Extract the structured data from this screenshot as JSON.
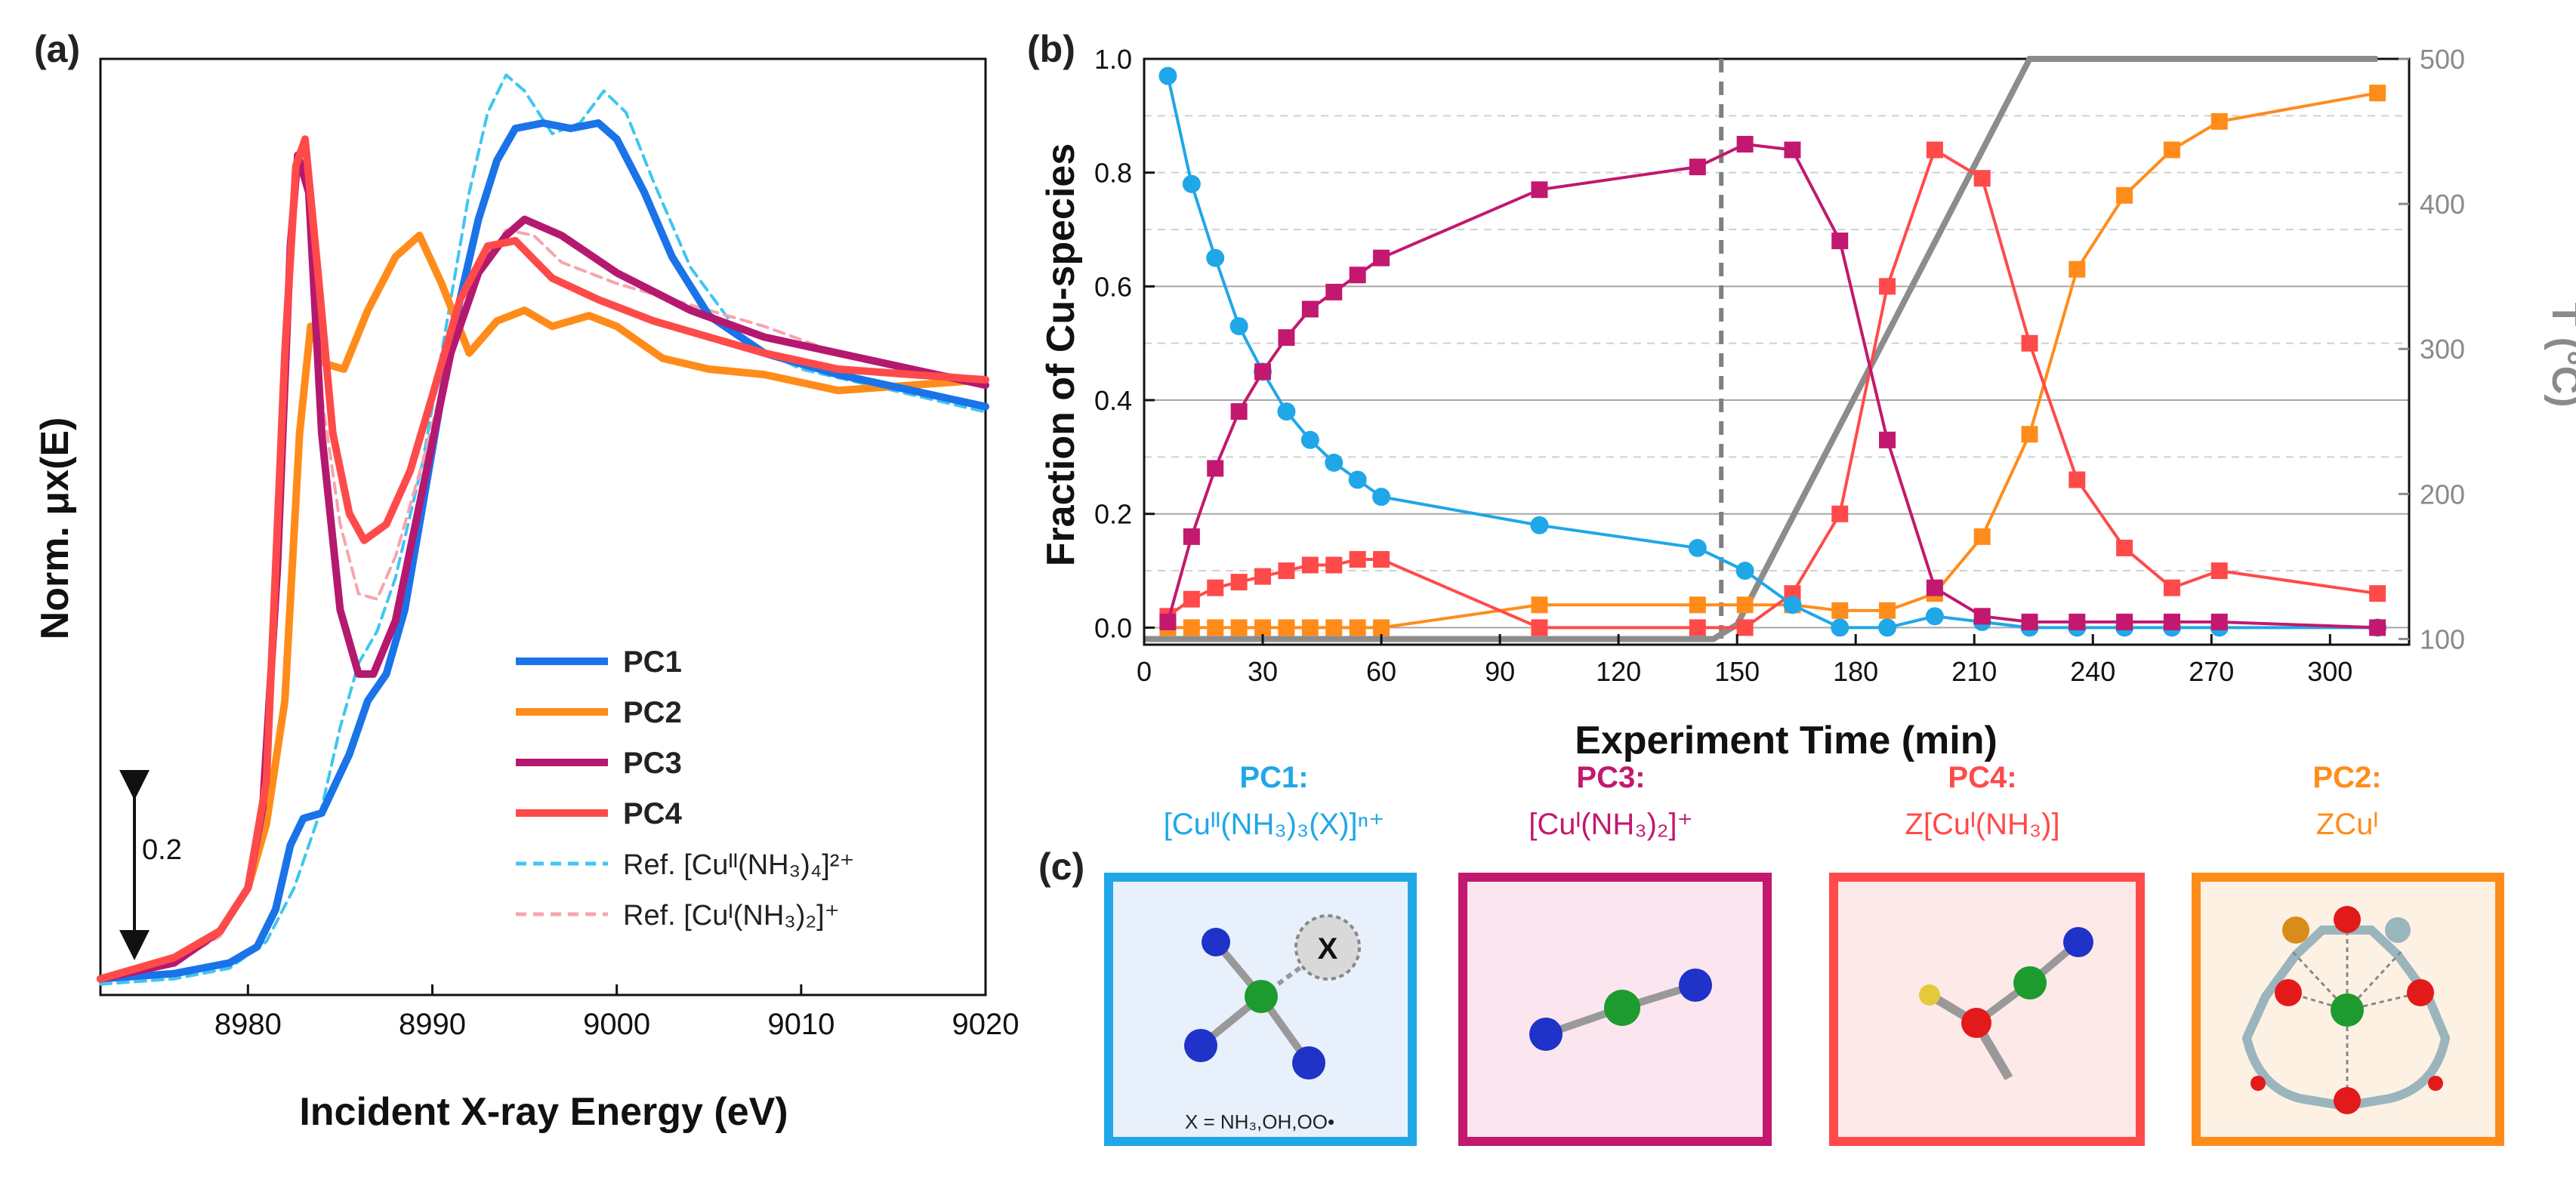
{
  "panels": {
    "a": "(a)",
    "b": "(b)",
    "c": "(c)"
  },
  "chart_data": [
    {
      "id": "xanes",
      "type": "line",
      "xlabel": "Incident X-ray Energy (eV)",
      "ylabel": "Norm. μx(E)",
      "xlim": [
        8972,
        9020
      ],
      "ylim": [
        0,
        1.75
      ],
      "xticks": [
        8980,
        8990,
        9000,
        9010,
        9020
      ],
      "scale_bar": {
        "label": "0.2",
        "value": 0.2
      },
      "legend": [
        "PC1",
        "PC2",
        "PC3",
        "PC4",
        "Ref. [Cuᴵᴵ(NH₃)₄]²⁺",
        "Ref. [Cuᴵ(NH₃)₂]⁺"
      ],
      "series": [
        {
          "name": "PC1",
          "color": "#1a73e8",
          "style": "solid",
          "x": [
            8972,
            8976,
            8979,
            8980.5,
            8981.5,
            8982.3,
            8983,
            8984,
            8985.5,
            8986.5,
            8987.5,
            8988.5,
            8989.5,
            8990.5,
            8991.5,
            8992.5,
            8993.5,
            8994.5,
            8996,
            8997.5,
            8999,
            9000,
            9001.5,
            9003,
            9005,
            9008,
            9012,
            9016,
            9020
          ],
          "y": [
            0.03,
            0.04,
            0.06,
            0.09,
            0.16,
            0.28,
            0.33,
            0.34,
            0.45,
            0.55,
            0.6,
            0.72,
            0.92,
            1.12,
            1.3,
            1.45,
            1.56,
            1.62,
            1.63,
            1.62,
            1.63,
            1.6,
            1.5,
            1.38,
            1.27,
            1.2,
            1.16,
            1.13,
            1.1
          ]
        },
        {
          "name": "PC2",
          "color": "#ff8c1a",
          "style": "solid",
          "x": [
            8972,
            8976,
            8978.5,
            8980,
            8981,
            8982,
            8982.8,
            8983.4,
            8984.2,
            8985.2,
            8986.5,
            8988,
            8989.3,
            8990.5,
            8992,
            8993.5,
            8995,
            8996.5,
            8998.5,
            9000,
            9002.5,
            9005,
            9008,
            9012,
            9016,
            9020
          ],
          "y": [
            0.03,
            0.07,
            0.12,
            0.2,
            0.32,
            0.55,
            1.05,
            1.25,
            1.18,
            1.17,
            1.28,
            1.38,
            1.42,
            1.33,
            1.2,
            1.26,
            1.28,
            1.25,
            1.27,
            1.25,
            1.19,
            1.17,
            1.16,
            1.13,
            1.14,
            1.15
          ]
        },
        {
          "name": "PC3",
          "color": "#b5186f",
          "style": "solid",
          "x": [
            8972,
            8976,
            8978.5,
            8980,
            8980.8,
            8981.6,
            8982.3,
            8982.7,
            8983.3,
            8984,
            8985,
            8986,
            8986.8,
            8988,
            8989.5,
            8991,
            8992.5,
            8994,
            8995,
            8997,
            9000,
            9004,
            9008,
            9012,
            9016,
            9020
          ],
          "y": [
            0.03,
            0.06,
            0.12,
            0.2,
            0.35,
            0.8,
            1.4,
            1.57,
            1.5,
            1.05,
            0.72,
            0.6,
            0.6,
            0.7,
            0.95,
            1.2,
            1.35,
            1.42,
            1.45,
            1.42,
            1.35,
            1.28,
            1.23,
            1.2,
            1.17,
            1.14
          ]
        },
        {
          "name": "PC4",
          "color": "#ff4a4a",
          "style": "solid",
          "x": [
            8972,
            8976,
            8978.5,
            8980,
            8981,
            8982,
            8982.6,
            8983.1,
            8983.8,
            8984.6,
            8985.5,
            8986.3,
            8987.5,
            8988.8,
            8990,
            8991.5,
            8993,
            8994.5,
            8996.5,
            8999,
            9002,
            9005,
            9008,
            9012,
            9016,
            9020
          ],
          "y": [
            0.03,
            0.07,
            0.12,
            0.2,
            0.4,
            1.2,
            1.55,
            1.6,
            1.35,
            1.05,
            0.9,
            0.85,
            0.88,
            0.98,
            1.12,
            1.3,
            1.4,
            1.41,
            1.34,
            1.3,
            1.26,
            1.23,
            1.2,
            1.17,
            1.16,
            1.15
          ]
        },
        {
          "name": "Ref. [Cuᴵᴵ(NH₃)₄]²⁺",
          "color": "#3fc6f0",
          "style": "dashed",
          "x": [
            8972,
            8976,
            8979,
            8981,
            8982.5,
            8984,
            8985,
            8986,
            8987,
            8988,
            8989.5,
            8991,
            8992,
            8993,
            8994,
            8995,
            8996.5,
            8998,
            8999.3,
            9000.5,
            9002,
            9004,
            9007,
            9010,
            9015,
            9020
          ],
          "y": [
            0.02,
            0.03,
            0.05,
            0.1,
            0.2,
            0.35,
            0.5,
            0.62,
            0.68,
            0.78,
            1.0,
            1.3,
            1.5,
            1.65,
            1.72,
            1.69,
            1.61,
            1.63,
            1.69,
            1.65,
            1.52,
            1.36,
            1.22,
            1.17,
            1.13,
            1.09
          ]
        },
        {
          "name": "Ref. [Cuᴵ(NH₃)₂]⁺",
          "color": "#f7a4ac",
          "style": "dashed",
          "x": [
            8972,
            8976,
            8978.5,
            8980,
            8981,
            8982,
            8982.7,
            8983.3,
            8984,
            8985,
            8986,
            8987,
            8988,
            8989.5,
            8991,
            8992.5,
            8994,
            8995.5,
            8997,
            9000,
            9004,
            9008,
            9012,
            9016,
            9020
          ],
          "y": [
            0.03,
            0.06,
            0.11,
            0.2,
            0.4,
            1.1,
            1.57,
            1.5,
            1.12,
            0.88,
            0.75,
            0.74,
            0.82,
            1.0,
            1.2,
            1.35,
            1.43,
            1.42,
            1.37,
            1.33,
            1.29,
            1.25,
            1.2,
            1.17,
            1.15
          ]
        }
      ]
    },
    {
      "id": "fractions",
      "type": "scatter",
      "xlabel": "Experiment Time (min)",
      "ylabel": "Fraction of Cu-species",
      "y2label": "T (°C)",
      "xlim": [
        0,
        320
      ],
      "ylim": [
        -0.03,
        1.0
      ],
      "y2lim": [
        100,
        500
      ],
      "xticks": [
        0,
        30,
        60,
        90,
        120,
        150,
        180,
        210,
        240,
        270,
        300
      ],
      "yticks": [
        0.0,
        0.2,
        0.4,
        0.6,
        0.8,
        1.0
      ],
      "y2ticks": [
        100,
        200,
        300,
        400,
        500
      ],
      "vline_x": 146,
      "series": [
        {
          "name": "PC1",
          "color": "#1fa7e8",
          "marker": "circle",
          "x": [
            6,
            12,
            18,
            24,
            30,
            36,
            42,
            48,
            54,
            60,
            100,
            140,
            152,
            164,
            176,
            188,
            200,
            212,
            224,
            236,
            248,
            260,
            272,
            312
          ],
          "y": [
            0.97,
            0.78,
            0.65,
            0.53,
            0.45,
            0.38,
            0.33,
            0.29,
            0.26,
            0.23,
            0.18,
            0.14,
            0.1,
            0.04,
            0.0,
            0.0,
            0.02,
            0.01,
            0.0,
            0.0,
            0.0,
            0.0,
            0.0,
            0.0
          ]
        },
        {
          "name": "PC2",
          "color": "#ff8c1a",
          "marker": "square",
          "x": [
            6,
            12,
            18,
            24,
            30,
            36,
            42,
            48,
            54,
            60,
            100,
            140,
            152,
            164,
            176,
            188,
            200,
            212,
            224,
            236,
            248,
            260,
            272,
            312
          ],
          "y": [
            0.0,
            0.0,
            0.0,
            0.0,
            0.0,
            0.0,
            0.0,
            0.0,
            0.0,
            0.0,
            0.04,
            0.04,
            0.04,
            0.04,
            0.03,
            0.03,
            0.06,
            0.16,
            0.34,
            0.63,
            0.76,
            0.84,
            0.89,
            0.94
          ]
        },
        {
          "name": "PC3",
          "color": "#c2186f",
          "marker": "square",
          "x": [
            6,
            12,
            18,
            24,
            30,
            36,
            42,
            48,
            54,
            60,
            100,
            140,
            152,
            164,
            176,
            188,
            200,
            212,
            224,
            236,
            248,
            260,
            272,
            312
          ],
          "y": [
            0.01,
            0.16,
            0.28,
            0.38,
            0.45,
            0.51,
            0.56,
            0.59,
            0.62,
            0.65,
            0.77,
            0.81,
            0.85,
            0.84,
            0.68,
            0.33,
            0.07,
            0.02,
            0.01,
            0.01,
            0.01,
            0.01,
            0.01,
            0.0
          ]
        },
        {
          "name": "PC4",
          "color": "#ff4a4a",
          "marker": "square",
          "x": [
            6,
            12,
            18,
            24,
            30,
            36,
            42,
            48,
            54,
            60,
            100,
            140,
            152,
            164,
            176,
            188,
            200,
            212,
            224,
            236,
            248,
            260,
            272,
            312
          ],
          "y": [
            0.02,
            0.05,
            0.07,
            0.08,
            0.09,
            0.1,
            0.11,
            0.11,
            0.12,
            0.12,
            0.0,
            0.0,
            0.0,
            0.06,
            0.2,
            0.6,
            0.84,
            0.79,
            0.5,
            0.26,
            0.14,
            0.07,
            0.1,
            0.06
          ]
        },
        {
          "name": "T",
          "color": "#8c8c8c",
          "marker": "none",
          "axis": "y2",
          "x": [
            0,
            144,
            150,
            224,
            312
          ],
          "y": [
            100,
            100,
            110,
            500,
            500
          ]
        }
      ]
    }
  ],
  "structures": [
    {
      "title": "PC1:",
      "formula": "[Cuᴵᴵ(NH₃)₃(X)]ⁿ⁺",
      "color": "#1fa7e8",
      "bg": "#e8f1fb",
      "note": "X = NH₃,OH,OO•",
      "x_label": "X"
    },
    {
      "title": "PC3:",
      "formula": "[Cuᴵ(NH₃)₂]⁺",
      "color": "#c2186f",
      "bg": "#fbe6ef"
    },
    {
      "title": "PC4:",
      "formula": "Z[Cuᴵ(NH₃)]",
      "color": "#ff4a4a",
      "bg": "#fde9e7"
    },
    {
      "title": "PC2:",
      "formula": "ZCuᴵ",
      "color": "#ff8c1a",
      "bg": "#fdf1e4"
    }
  ]
}
